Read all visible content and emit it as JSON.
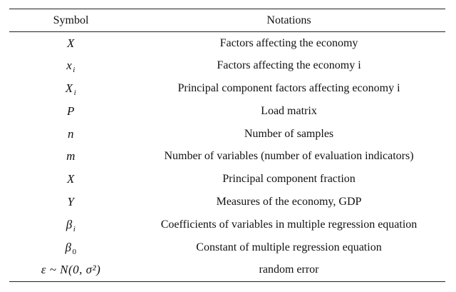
{
  "table": {
    "headers": {
      "symbol": "Symbol",
      "notations": "Notations"
    },
    "rows": [
      {
        "symbol": "X",
        "subscript": "",
        "notation": "Factors affecting the economy"
      },
      {
        "symbol": "x",
        "subscript": "i",
        "notation": "Factors affecting the economy i"
      },
      {
        "symbol": "X",
        "subscript": "i",
        "notation": "Principal component factors affecting economy i"
      },
      {
        "symbol": "P",
        "subscript": "",
        "notation": "Load matrix"
      },
      {
        "symbol": "n",
        "subscript": "",
        "notation": "Number of samples"
      },
      {
        "symbol": "m",
        "subscript": "",
        "notation": "Number of variables (number of evaluation indicators)"
      },
      {
        "symbol": "X",
        "subscript": "",
        "notation": "Principal component fraction"
      },
      {
        "symbol": "Y",
        "subscript": "",
        "notation": "Measures of the economy, GDP"
      },
      {
        "symbol": "β",
        "subscript": "i",
        "notation": "Coefficients of variables in multiple regression equation"
      },
      {
        "symbol": "β",
        "subscript": "0",
        "notation": "Constant of multiple regression equation"
      },
      {
        "symbol": "ε ~ N(0, σ²)",
        "subscript": "",
        "notation": "random error"
      }
    ]
  }
}
